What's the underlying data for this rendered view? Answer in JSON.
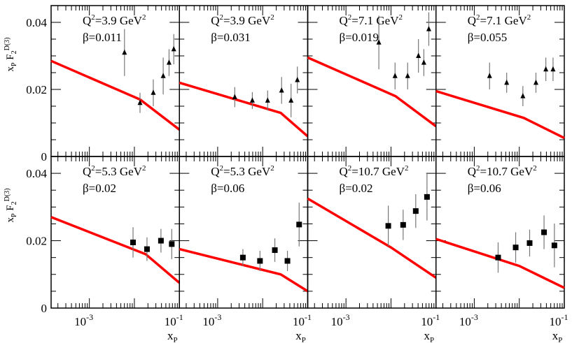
{
  "chart_data": [
    {
      "type": "scatter",
      "title": "Q^2=3.9 GeV^2",
      "q2_label": "Q",
      "q2_value": "=3.9 GeV",
      "beta_label": "β=0.011",
      "marker": "triangle",
      "x_log10": [
        -2.22,
        -1.875,
        -1.58,
        -1.36,
        -1.23,
        -1.125
      ],
      "y": [
        0.031,
        0.016,
        0.019,
        0.024,
        0.028,
        0.032
      ],
      "err": [
        0.007,
        0.003,
        0.004,
        0.0055,
        0.004,
        0.0045
      ],
      "curve": {
        "x_log10": [
          -3.85,
          -1.875,
          -1.0
        ],
        "y": [
          0.0285,
          0.017,
          0.008
        ]
      }
    },
    {
      "type": "scatter",
      "title": "Q^2=3.9 GeV^2",
      "q2_label": "Q",
      "q2_value": "=3.9 GeV",
      "beta_label": "β=0.031",
      "marker": "triangle",
      "x_log10": [
        -2.62,
        -2.23,
        -1.89,
        -1.58,
        -1.37,
        -1.23
      ],
      "y": [
        0.0177,
        0.0167,
        0.0167,
        0.0197,
        0.0167,
        0.0228
      ],
      "err": [
        0.003,
        0.0025,
        0.003,
        0.004,
        0.005,
        0.004
      ],
      "curve": {
        "x_log10": [
          -3.85,
          -1.6,
          -1.0
        ],
        "y": [
          0.022,
          0.013,
          0.006
        ]
      }
    },
    {
      "type": "scatter",
      "title": "Q^2=7.1 GeV^2",
      "q2_label": "Q",
      "q2_value": "=7.1 GeV",
      "beta_label": "β=0.019",
      "marker": "triangle",
      "x_log10": [
        -2.27,
        -1.91,
        -1.63,
        -1.39,
        -1.27,
        -1.16
      ],
      "y": [
        0.034,
        0.024,
        0.024,
        0.03,
        0.028,
        0.038
      ],
      "err": [
        0.008,
        0.004,
        0.004,
        0.005,
        0.004,
        0.005
      ],
      "curve": {
        "x_log10": [
          -3.85,
          -1.9,
          -1.0
        ],
        "y": [
          0.0295,
          0.018,
          0.009
        ]
      }
    },
    {
      "type": "scatter",
      "title": "Q^2=7.1 GeV^2",
      "q2_label": "Q",
      "q2_value": "=7.1 GeV",
      "beta_label": "β=0.055",
      "marker": "triangle",
      "x_log10": [
        -2.66,
        -2.28,
        -1.92,
        -1.63,
        -1.41,
        -1.25
      ],
      "y": [
        0.024,
        0.022,
        0.018,
        0.022,
        0.026,
        0.026
      ],
      "err": [
        0.004,
        0.003,
        0.003,
        0.003,
        0.0035,
        0.0035
      ],
      "curve": {
        "x_log10": [
          -3.85,
          -1.9,
          -1.0
        ],
        "y": [
          0.0195,
          0.0115,
          0.0055
        ]
      }
    },
    {
      "type": "scatter",
      "title": "Q^2=5.3 GeV^2",
      "q2_label": "Q",
      "q2_value": "=5.3 GeV",
      "beta_label": "β=0.02",
      "marker": "square",
      "x_log10": [
        -2.03,
        -1.72,
        -1.41,
        -1.17
      ],
      "y": [
        0.0195,
        0.0175,
        0.02,
        0.019
      ],
      "err": [
        0.0045,
        0.0035,
        0.0035,
        0.0045
      ],
      "curve": {
        "x_log10": [
          -3.85,
          -1.75,
          -1.0
        ],
        "y": [
          0.027,
          0.016,
          0.0075
        ]
      }
    },
    {
      "type": "scatter",
      "title": "Q^2=5.3 GeV^2",
      "q2_label": "Q",
      "q2_value": "=5.3 GeV",
      "beta_label": "β=0.06",
      "marker": "square",
      "x_log10": [
        -2.44,
        -2.06,
        -1.73,
        -1.45,
        -1.19
      ],
      "y": [
        0.015,
        0.014,
        0.0172,
        0.014,
        0.0248
      ],
      "err": [
        0.0025,
        0.003,
        0.0035,
        0.003,
        0.0065
      ],
      "curve": {
        "x_log10": [
          -3.85,
          -1.6,
          -1.0
        ],
        "y": [
          0.0175,
          0.01,
          0.005
        ]
      }
    },
    {
      "type": "scatter",
      "title": "Q^2=10.7 GeV^2",
      "q2_label": "Q",
      "q2_value": "=10.7 GeV",
      "beta_label": "β=0.02",
      "marker": "square",
      "x_log10": [
        -2.06,
        -1.73,
        -1.45,
        -1.2
      ],
      "y": [
        0.0244,
        0.0247,
        0.0288,
        0.033
      ],
      "err": [
        0.006,
        0.0045,
        0.005,
        0.007
      ],
      "curve": {
        "x_log10": [
          -3.85,
          -2.0,
          -1.0
        ],
        "y": [
          0.0325,
          0.018,
          0.009
        ]
      }
    },
    {
      "type": "scatter",
      "title": "Q^2=10.7 GeV^2",
      "q2_label": "Q",
      "q2_value": "=10.7 GeV",
      "beta_label": "β=0.06",
      "marker": "square",
      "x_log10": [
        -2.47,
        -2.08,
        -1.77,
        -1.45,
        -1.22
      ],
      "y": [
        0.015,
        0.018,
        0.0193,
        0.0225,
        0.0186
      ],
      "err": [
        0.0045,
        0.0045,
        0.004,
        0.005,
        0.0065
      ],
      "curve": {
        "x_log10": [
          -3.85,
          -2.0,
          -1.0
        ],
        "y": [
          0.0205,
          0.0125,
          0.006
        ]
      }
    }
  ],
  "axes": {
    "ylabel_main": "x",
    "ylabel_sub": "P",
    "ylabel_F": " F",
    "ylabel_F_sub": "2",
    "ylabel_F_sup": "D(3)",
    "xlabel_main": "x",
    "xlabel_sub": "P",
    "ylim": [
      0,
      0.045
    ],
    "xlim_log10": [
      -3.85,
      -1.0
    ],
    "yticks": [
      "0",
      "0.02",
      "0.04"
    ],
    "ytick_values": [
      0,
      0.02,
      0.04
    ],
    "xtick_base": "10",
    "xtick_exps": [
      "-3",
      "-1"
    ],
    "xtick_values_log10": [
      -3,
      -1
    ],
    "sup2": "2",
    "curve_color": "#ff0000",
    "marker_color": "#000000"
  }
}
